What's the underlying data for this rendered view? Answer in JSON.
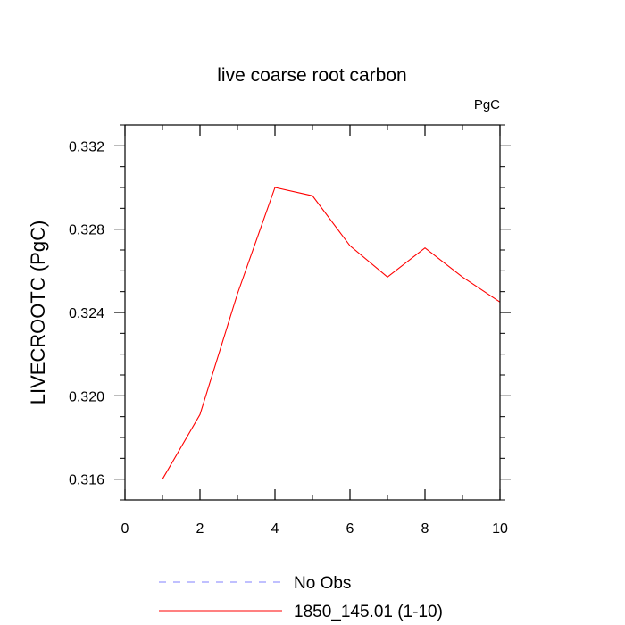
{
  "chart_data": {
    "type": "line",
    "title": "live coarse root carbon",
    "unit_label": "PgC",
    "ylabel": "LIVECROOTC  (PgC)",
    "xlabel": "",
    "xlim": [
      0,
      10
    ],
    "ylim": [
      0.315,
      0.333
    ],
    "x_ticks": [
      0,
      2,
      4,
      6,
      8,
      10
    ],
    "x_tick_labels": [
      "0",
      "2",
      "4",
      "6",
      "8",
      "10"
    ],
    "x_minor_step": 1,
    "y_ticks": [
      0.316,
      0.32,
      0.324,
      0.328,
      0.332
    ],
    "y_tick_labels": [
      "0.316",
      "0.320",
      "0.324",
      "0.328",
      "0.332"
    ],
    "y_minor_step": 0.001,
    "grid": false,
    "legend_position": "bottom",
    "series": [
      {
        "name": "No Obs",
        "color": "#8080ff",
        "dashed": true,
        "x": [],
        "values": []
      },
      {
        "name": "1850_145.01 (1-10)",
        "color": "#ff0000",
        "dashed": false,
        "x": [
          1,
          2,
          3,
          4,
          5,
          6,
          7,
          8,
          9,
          10
        ],
        "values": [
          0.316,
          0.3191,
          0.3249,
          0.33,
          0.3296,
          0.3272,
          0.3257,
          0.3271,
          0.3257,
          0.3245
        ]
      }
    ]
  }
}
